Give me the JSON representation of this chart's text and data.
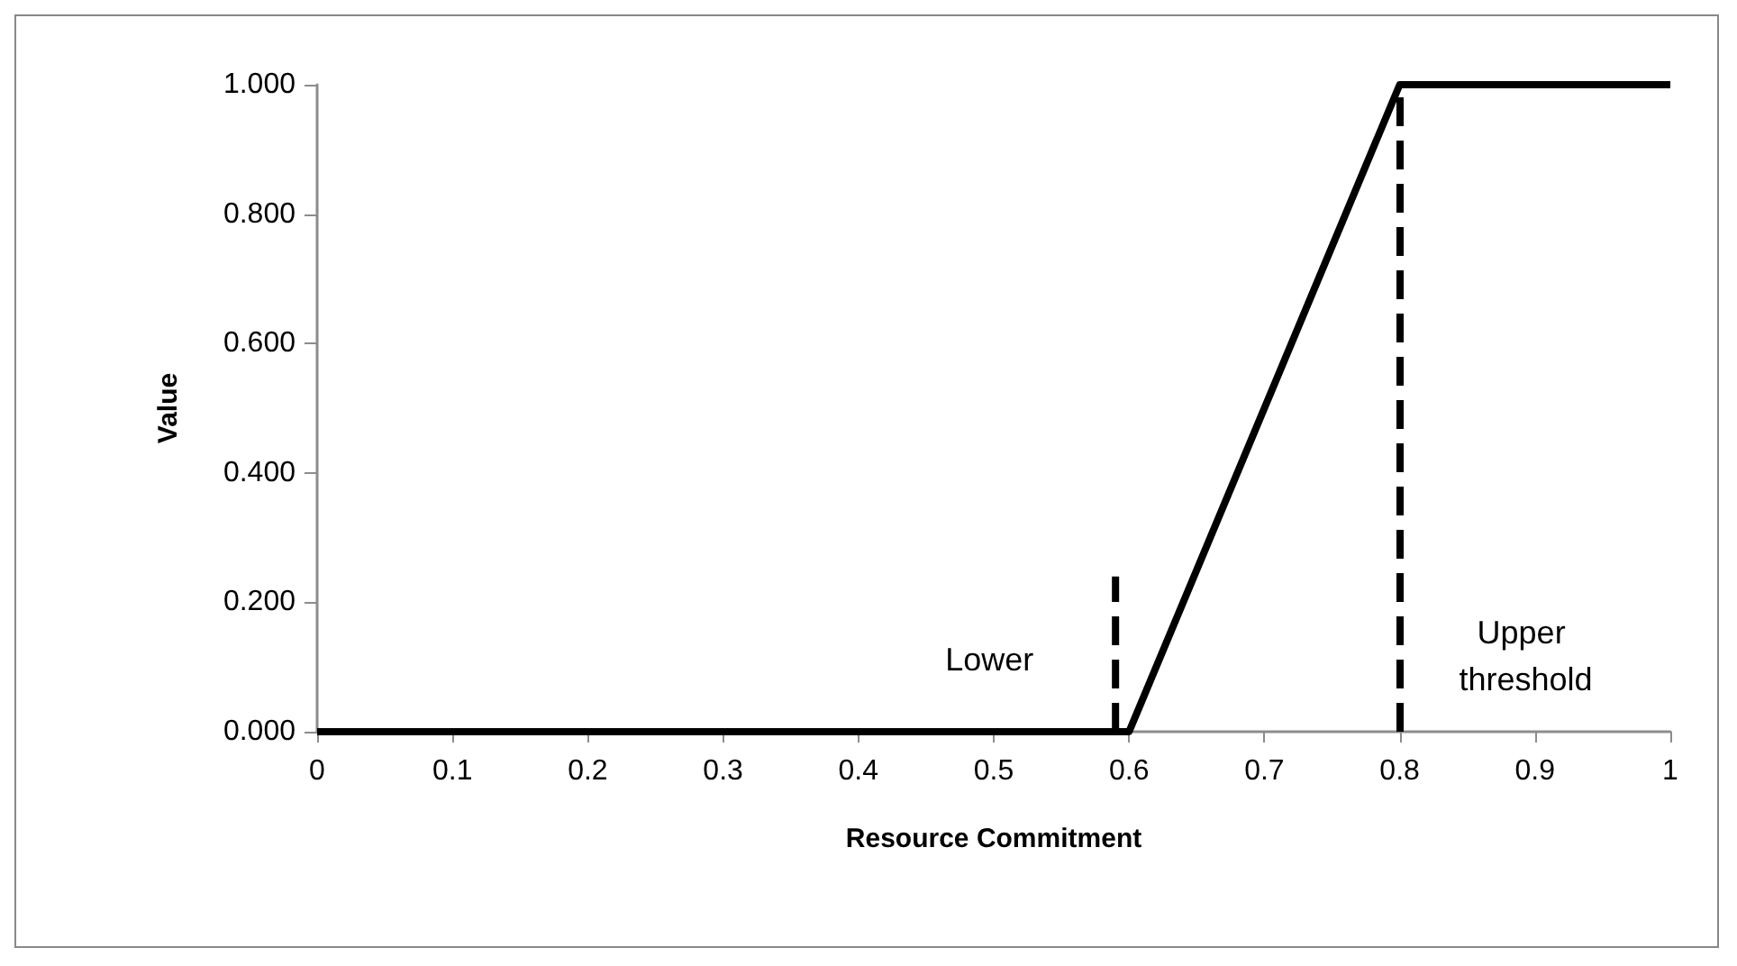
{
  "chart_data": {
    "type": "line",
    "xlabel": "Resource Commitment",
    "ylabel": "Value",
    "xlim": [
      0,
      1
    ],
    "xticks": [
      0,
      0.1,
      0.2,
      0.3,
      0.4,
      0.5,
      0.6,
      0.7,
      0.8,
      0.9,
      1
    ],
    "ylim": [
      0,
      1
    ],
    "yticks": [
      {
        "value": 0,
        "label": "0.000"
      },
      {
        "value": 0.2,
        "label": "0.200"
      },
      {
        "value": 0.4,
        "label": "0.400"
      },
      {
        "value": 0.6,
        "label": "0.600"
      },
      {
        "value": 0.8,
        "label": "0.800"
      },
      {
        "value": 1,
        "label": "1.000"
      }
    ],
    "grid": false,
    "marker": "none",
    "line_style": "solid",
    "series": [
      {
        "color": "#000000",
        "x": [
          0,
          0.6,
          0.8,
          1
        ],
        "values": [
          0,
          0,
          1,
          1
        ]
      },
      {
        "name": "Lower",
        "color": "#000000",
        "line_style": "dashed",
        "x": [
          0.59,
          0.59
        ],
        "values": [
          0,
          0.24
        ]
      }
    ],
    "ref_lines": [
      {
        "axis": "x",
        "value": 0.8,
        "label": "Upper threshold",
        "color": "#000000",
        "line_style": "dashed"
      }
    ]
  }
}
